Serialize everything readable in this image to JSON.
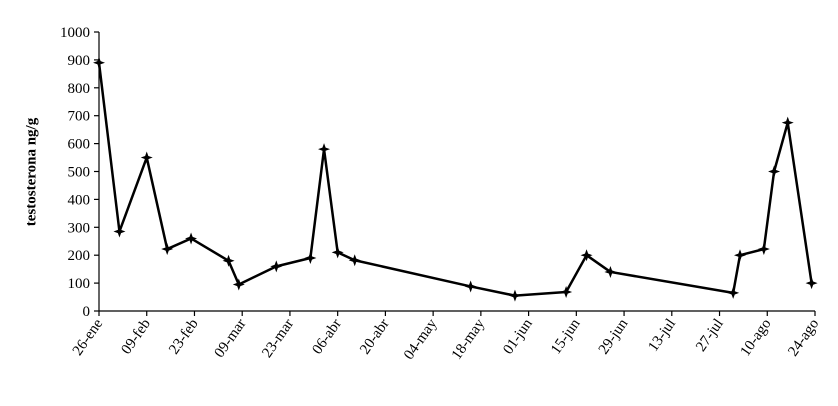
{
  "chart_data": {
    "type": "line",
    "y_label": "testosterona ng/g",
    "x": [
      "01-26",
      "02-01",
      "02-09",
      "02-15",
      "02-22",
      "03-05",
      "03-08",
      "03-19",
      "03-29",
      "04-02",
      "04-06",
      "04-11",
      "05-15",
      "05-28",
      "06-12",
      "06-18",
      "06-25",
      "07-31",
      "08-02",
      "08-09",
      "08-12",
      "08-16",
      "08-23"
    ],
    "series": [
      {
        "name": "testosterona",
        "color": "#000000",
        "values": [
          890,
          285,
          550,
          222,
          260,
          180,
          95,
          160,
          190,
          580,
          210,
          182,
          88,
          55,
          68,
          200,
          140,
          65,
          200,
          222,
          500,
          675,
          100
        ]
      }
    ],
    "xlim": [
      "01-26",
      "08-24"
    ],
    "xticks": [
      {
        "value": "01-26",
        "label": "26-ene"
      },
      {
        "value": "02-09",
        "label": "09-feb"
      },
      {
        "value": "02-23",
        "label": "23-feb"
      },
      {
        "value": "03-09",
        "label": "09-mar"
      },
      {
        "value": "03-23",
        "label": "23-mar"
      },
      {
        "value": "04-06",
        "label": "06-abr"
      },
      {
        "value": "04-20",
        "label": "20-abr"
      },
      {
        "value": "05-04",
        "label": "04-may"
      },
      {
        "value": "05-18",
        "label": "18-may"
      },
      {
        "value": "06-01",
        "label": "01-jun"
      },
      {
        "value": "06-15",
        "label": "15-jun"
      },
      {
        "value": "06-29",
        "label": "29-jun"
      },
      {
        "value": "07-13",
        "label": "13-jul"
      },
      {
        "value": "07-27",
        "label": "27-jul"
      },
      {
        "value": "08-10",
        "label": "10-ago"
      },
      {
        "value": "08-24",
        "label": "24-ago"
      }
    ],
    "ylim": [
      0,
      1000
    ],
    "yticks": [
      0,
      100,
      200,
      300,
      400,
      500,
      600,
      700,
      800,
      900,
      1000
    ],
    "grid": false
  }
}
